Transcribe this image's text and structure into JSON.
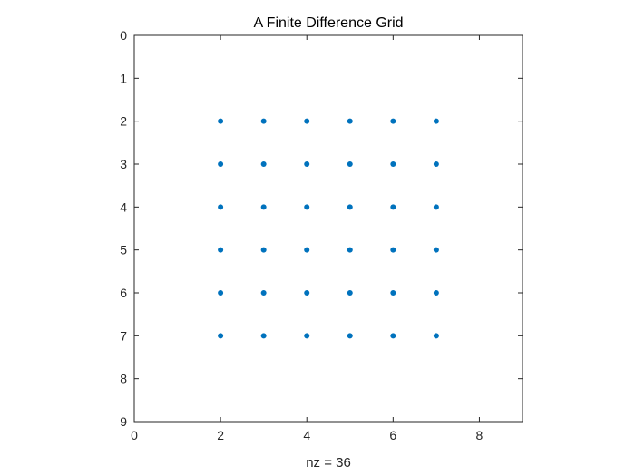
{
  "chart_data": {
    "type": "scatter",
    "title": "A Finite Difference Grid",
    "xlabel": "nz = 36",
    "ylabel": "",
    "xlim": [
      0,
      9
    ],
    "ylim": [
      0,
      9
    ],
    "y_reversed": true,
    "x_ticks": [
      "0",
      "2",
      "4",
      "6",
      "8"
    ],
    "y_ticks": [
      "0",
      "1",
      "2",
      "3",
      "4",
      "5",
      "6",
      "7",
      "8",
      "9"
    ],
    "grid": false,
    "marker_color": "#0072BD",
    "points": [
      [
        2,
        2
      ],
      [
        3,
        2
      ],
      [
        4,
        2
      ],
      [
        5,
        2
      ],
      [
        6,
        2
      ],
      [
        7,
        2
      ],
      [
        2,
        3
      ],
      [
        3,
        3
      ],
      [
        4,
        3
      ],
      [
        5,
        3
      ],
      [
        6,
        3
      ],
      [
        7,
        3
      ],
      [
        2,
        4
      ],
      [
        3,
        4
      ],
      [
        4,
        4
      ],
      [
        5,
        4
      ],
      [
        6,
        4
      ],
      [
        7,
        4
      ],
      [
        2,
        5
      ],
      [
        3,
        5
      ],
      [
        4,
        5
      ],
      [
        5,
        5
      ],
      [
        6,
        5
      ],
      [
        7,
        5
      ],
      [
        2,
        6
      ],
      [
        3,
        6
      ],
      [
        4,
        6
      ],
      [
        5,
        6
      ],
      [
        6,
        6
      ],
      [
        7,
        6
      ],
      [
        2,
        7
      ],
      [
        3,
        7
      ],
      [
        4,
        7
      ],
      [
        5,
        7
      ],
      [
        6,
        7
      ],
      [
        7,
        7
      ]
    ]
  }
}
